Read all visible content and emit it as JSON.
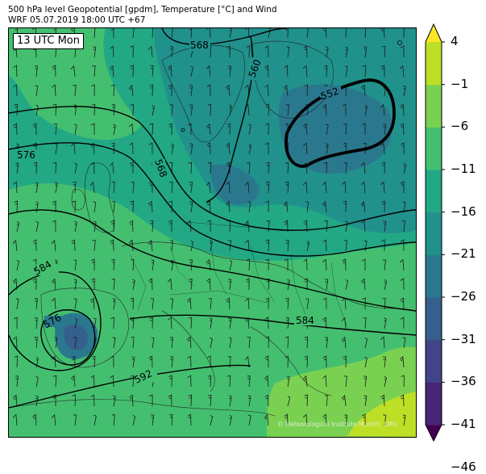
{
  "header": {
    "line1": "500 hPa level Geopotential [gpdm], Temperature [°C] and Wind",
    "line2": "WRF 05.07.2019 18:00 UTC +67"
  },
  "time_label": "13 UTC Mon",
  "copyright": "© Meteorological Institute Munich, LMU",
  "colorbar": {
    "ticks": [
      "4",
      "−1",
      "−6",
      "−11",
      "−16",
      "−21",
      "−26",
      "−31",
      "−36",
      "−41",
      "−46"
    ],
    "colors": [
      "#440154",
      "#482475",
      "#414487",
      "#355f8d",
      "#2a788e",
      "#21918c",
      "#22a884",
      "#44bf70",
      "#7ad151",
      "#bddf26",
      "#fde725"
    ]
  },
  "contour_labels": {
    "c568_top": "568",
    "c560": "560",
    "c552": "552",
    "c576_left": "576",
    "c568_mid": "568",
    "c584_left": "584",
    "c576_low": "576",
    "c584_right": "584",
    "c592": "592"
  },
  "colors": {
    "field_cold": "#21918c",
    "field_mid": "#22a884",
    "field_warm": "#44bf70",
    "field_hot": "#7ad151",
    "field_hotter": "#bddf26",
    "field_deep": "#2a788e",
    "field_deeper": "#355f8d"
  }
}
